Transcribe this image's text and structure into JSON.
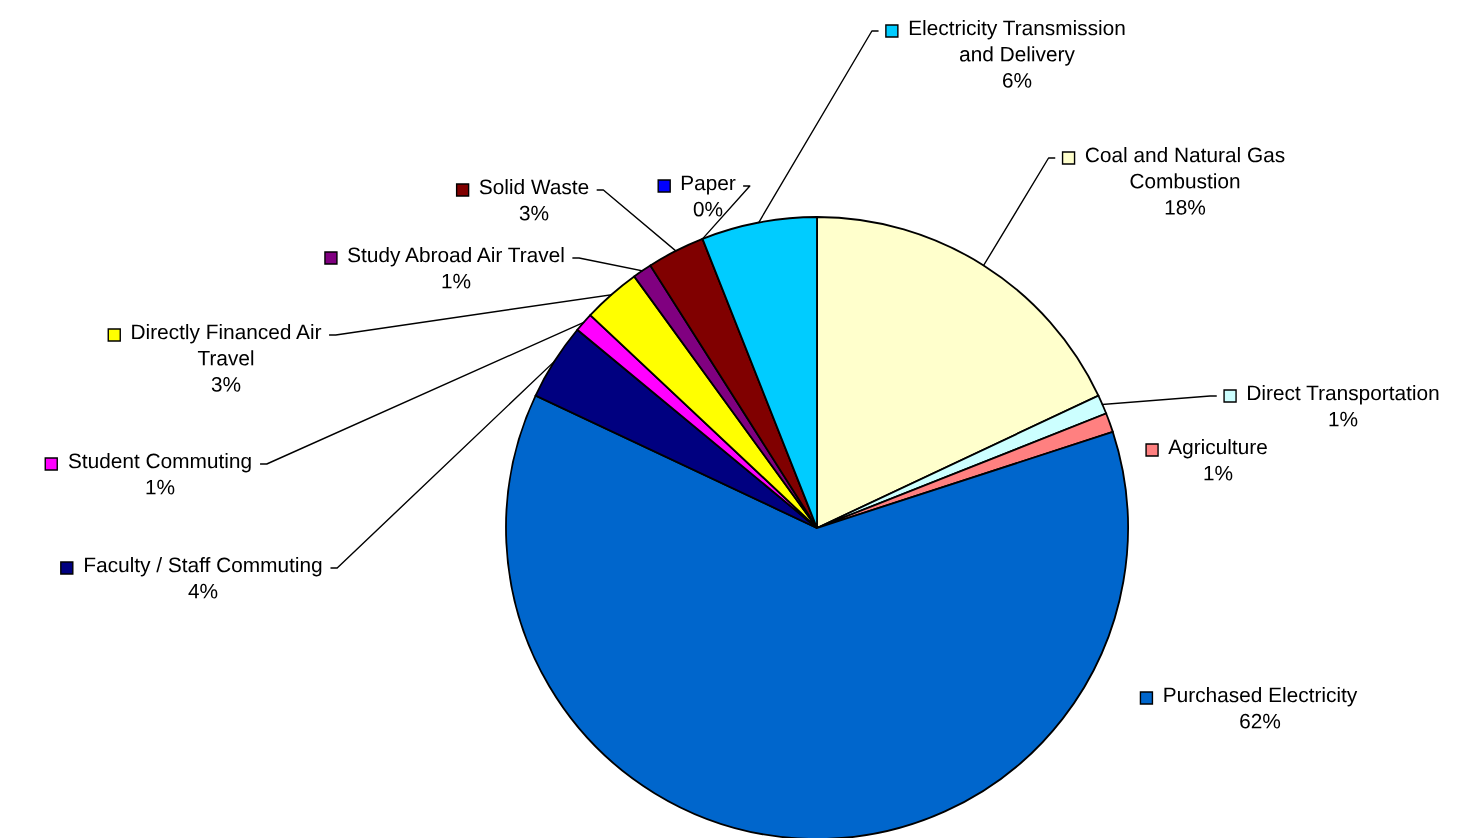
{
  "chart_data": {
    "type": "pie",
    "legend": "top left",
    "categories": [
      "Coal and Natural Gas Combustion",
      "Direct Transportation",
      "Agriculture",
      "Purchased Electricity",
      "Faculty / Staff Commuting",
      "Student Commuting",
      "Directly Financed Air Travel",
      "Study Abroad Air Travel",
      "Solid Waste",
      "Paper",
      "Electricity Transmission and Delivery"
    ],
    "values": [
      18,
      1,
      1,
      62,
      4,
      1,
      3,
      1,
      3,
      0,
      6
    ],
    "value_labels": [
      "18%",
      "1%",
      "1%",
      "62%",
      "4%",
      "1%",
      "3%",
      "1%",
      "3%",
      "0%",
      "6%"
    ],
    "colors": [
      "#ffffcc",
      "#ccffff",
      "#ff8080",
      "#0066cc",
      "#000080",
      "#ff00ff",
      "#ffff00",
      "#800080",
      "#800000",
      "#0000ff",
      "#00ccff"
    ]
  }
}
